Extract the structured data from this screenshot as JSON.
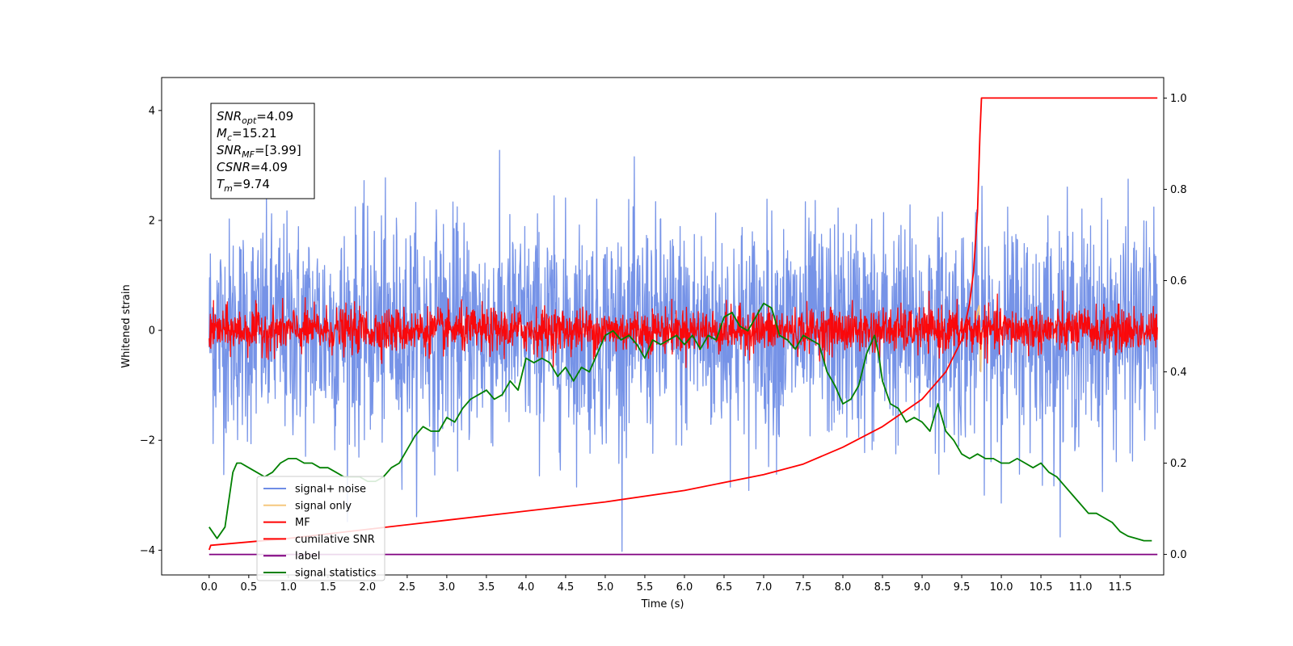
{
  "chart_data": {
    "type": "line",
    "xlabel": "Time (s)",
    "ylabel": "Whitened strain",
    "xlim": [
      -0.6,
      12.05
    ],
    "ylim": [
      -4.45,
      4.6
    ],
    "y2lim": [
      -0.045,
      1.045
    ],
    "xticks": [
      0.0,
      0.5,
      1.0,
      1.5,
      2.0,
      2.5,
      3.0,
      3.5,
      4.0,
      4.5,
      5.0,
      5.5,
      6.0,
      6.5,
      7.0,
      7.5,
      8.0,
      8.5,
      9.0,
      9.5,
      10.0,
      10.5,
      11.0,
      11.5
    ],
    "xtick_labels": [
      "0.0",
      "0.5",
      "1.0",
      "1.5",
      "2.0",
      "2.5",
      "3.0",
      "3.5",
      "4.0",
      "4.5",
      "5.0",
      "5.5",
      "6.0",
      "6.5",
      "7.0",
      "7.5",
      "8.0",
      "8.5",
      "9.0",
      "9.5",
      "10.0",
      "10.5",
      "11.0",
      "11.5"
    ],
    "yticks": [
      -4,
      -2,
      0,
      2,
      4
    ],
    "ytick_labels": [
      "−4",
      "−2",
      "0",
      "2",
      "4"
    ],
    "y2ticks": [
      0.0,
      0.2,
      0.4,
      0.6,
      0.8,
      1.0
    ],
    "y2tick_labels": [
      "0.0",
      "0.2",
      "0.4",
      "0.6",
      "0.8",
      "1.0"
    ],
    "time_range": [
      0.0,
      11.97
    ],
    "info_box": [
      {
        "base": "SNR",
        "sub": "opt",
        "value": "=4.09"
      },
      {
        "base": "M",
        "sub": "c",
        "value": "=15.21"
      },
      {
        "base": "SNR",
        "sub": "MF",
        "value": "=[3.99]"
      },
      {
        "base": "CSNR",
        "sub": "",
        "value": "=4.09"
      },
      {
        "base": "T",
        "sub": "m",
        "value": "=9.74"
      }
    ],
    "legend": {
      "placement": "lower-left",
      "entries": [
        {
          "label": "signal+ noise",
          "color": "#6f8de6"
        },
        {
          "label": "signal only",
          "color": "#f5c77e"
        },
        {
          "label": "MF",
          "color": "#ff0000"
        },
        {
          "label": "cumilative SNR",
          "color": "#ff0000"
        },
        {
          "label": "label",
          "color": "#800080"
        },
        {
          "label": "signal statistics",
          "color": "#008000"
        }
      ]
    },
    "series": [
      {
        "name": "signal+ noise",
        "axis": "left",
        "color": "#6f8de6",
        "noise": {
          "std": 1.0,
          "clip": 4.15
        }
      },
      {
        "name": "signal only",
        "axis": "left",
        "color": "#f5c77e",
        "x": [
          9.68,
          9.7,
          9.72,
          9.73,
          9.74,
          9.75
        ],
        "y": [
          0.2,
          0.35,
          0.45,
          -0.3,
          -0.75,
          0.0
        ]
      },
      {
        "name": "MF",
        "axis": "left",
        "color": "#ff0000",
        "noise": {
          "std": 0.2,
          "clip": 0.95
        }
      },
      {
        "name": "cumilative SNR",
        "axis": "right",
        "color": "#ff0000",
        "x": [
          0.0,
          0.02,
          1.0,
          2.0,
          3.0,
          4.0,
          5.0,
          6.0,
          7.0,
          7.5,
          8.0,
          8.5,
          9.0,
          9.3,
          9.5,
          9.6,
          9.65,
          9.7,
          9.73,
          9.75,
          11.97
        ],
        "y": [
          0.01,
          0.02,
          0.035,
          0.055,
          0.075,
          0.095,
          0.115,
          0.14,
          0.175,
          0.198,
          0.235,
          0.28,
          0.34,
          0.4,
          0.47,
          0.55,
          0.62,
          0.75,
          0.92,
          1.0,
          1.0
        ]
      },
      {
        "name": "label",
        "axis": "right",
        "color": "#800080",
        "x": [
          0.0,
          11.97
        ],
        "y": [
          0.0,
          0.0
        ]
      },
      {
        "name": "signal statistics",
        "axis": "right",
        "color": "#008000",
        "x": [
          0.0,
          0.1,
          0.2,
          0.3,
          0.35,
          0.4,
          0.5,
          0.6,
          0.7,
          0.8,
          0.9,
          1.0,
          1.1,
          1.2,
          1.3,
          1.4,
          1.5,
          1.6,
          1.7,
          1.8,
          1.9,
          2.0,
          2.1,
          2.2,
          2.3,
          2.4,
          2.5,
          2.6,
          2.7,
          2.8,
          2.9,
          3.0,
          3.1,
          3.2,
          3.3,
          3.4,
          3.5,
          3.6,
          3.7,
          3.8,
          3.9,
          4.0,
          4.1,
          4.2,
          4.3,
          4.4,
          4.5,
          4.6,
          4.7,
          4.8,
          4.9,
          5.0,
          5.1,
          5.2,
          5.3,
          5.4,
          5.5,
          5.6,
          5.7,
          5.8,
          5.9,
          6.0,
          6.1,
          6.2,
          6.3,
          6.4,
          6.5,
          6.6,
          6.7,
          6.8,
          6.9,
          7.0,
          7.1,
          7.2,
          7.3,
          7.4,
          7.5,
          7.6,
          7.7,
          7.8,
          7.9,
          8.0,
          8.1,
          8.2,
          8.3,
          8.4,
          8.45,
          8.5,
          8.6,
          8.7,
          8.8,
          8.9,
          9.0,
          9.1,
          9.2,
          9.3,
          9.4,
          9.5,
          9.6,
          9.7,
          9.8,
          9.9,
          10.0,
          10.1,
          10.2,
          10.3,
          10.4,
          10.5,
          10.6,
          10.7,
          10.8,
          10.9,
          11.0,
          11.1,
          11.2,
          11.3,
          11.4,
          11.5,
          11.6,
          11.7,
          11.8,
          11.9
        ],
        "y": [
          0.06,
          0.035,
          0.06,
          0.18,
          0.2,
          0.2,
          0.19,
          0.18,
          0.17,
          0.18,
          0.2,
          0.21,
          0.21,
          0.2,
          0.2,
          0.19,
          0.19,
          0.18,
          0.17,
          0.17,
          0.17,
          0.16,
          0.16,
          0.17,
          0.19,
          0.2,
          0.23,
          0.26,
          0.28,
          0.27,
          0.27,
          0.3,
          0.29,
          0.32,
          0.34,
          0.35,
          0.36,
          0.34,
          0.35,
          0.38,
          0.36,
          0.43,
          0.42,
          0.43,
          0.42,
          0.39,
          0.41,
          0.38,
          0.41,
          0.4,
          0.44,
          0.48,
          0.49,
          0.47,
          0.48,
          0.46,
          0.43,
          0.47,
          0.46,
          0.47,
          0.48,
          0.46,
          0.48,
          0.45,
          0.48,
          0.47,
          0.52,
          0.53,
          0.5,
          0.49,
          0.52,
          0.55,
          0.54,
          0.48,
          0.47,
          0.45,
          0.48,
          0.47,
          0.46,
          0.4,
          0.37,
          0.33,
          0.34,
          0.37,
          0.44,
          0.48,
          0.44,
          0.38,
          0.33,
          0.32,
          0.29,
          0.3,
          0.29,
          0.27,
          0.33,
          0.27,
          0.25,
          0.22,
          0.21,
          0.22,
          0.21,
          0.21,
          0.2,
          0.2,
          0.21,
          0.2,
          0.19,
          0.2,
          0.18,
          0.17,
          0.15,
          0.13,
          0.11,
          0.09,
          0.09,
          0.08,
          0.07,
          0.05,
          0.04,
          0.035,
          0.03,
          0.03
        ]
      }
    ]
  }
}
